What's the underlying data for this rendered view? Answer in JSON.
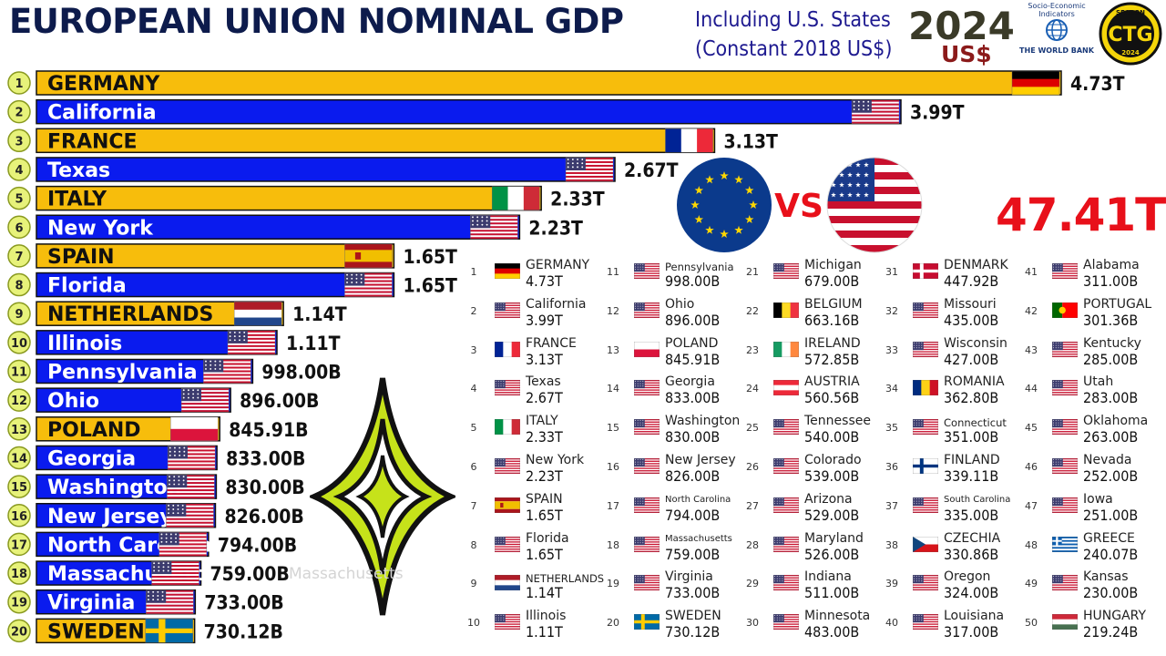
{
  "header": {
    "title": "EUROPEAN UNION NOMINAL GDP",
    "subtitle_line1": "Including U.S. States",
    "subtitle_line2": "(Constant 2018 US$)",
    "year": "2024",
    "currency": "US$"
  },
  "logos": {
    "worldbank_line1": "Socio-Economic",
    "worldbank_line2": "Indicators",
    "worldbank_name": "THE WORLD BANK",
    "ctg_season": "SEASON",
    "ctg_letters": "CTG",
    "ctg_year": "2024"
  },
  "vs_text": "VS",
  "total": "47.41T",
  "faded_label": "Massachusetts",
  "colors": {
    "eu": "#f7bd0c",
    "us": "#0a1bee",
    "bar_outline": "#111111",
    "rank_circle": "#e7f27a",
    "total": "#e8101a"
  },
  "chart_data": {
    "type": "bar",
    "orientation": "horizontal",
    "units": "US$ (constant 2018)",
    "categories": [
      "GERMANY",
      "California",
      "FRANCE",
      "Texas",
      "ITALY",
      "New York",
      "SPAIN",
      "Florida",
      "NETHERLANDS",
      "Illinois",
      "Pennsylvania",
      "Ohio",
      "POLAND",
      "Georgia",
      "Washington",
      "New Jersey",
      "North Carolina",
      "Massachusetts",
      "Virginia",
      "SWEDEN"
    ],
    "values": [
      4730,
      3990,
      3130,
      2670,
      2330,
      2230,
      1650,
      1650,
      1140,
      1110,
      998.0,
      896.0,
      845.91,
      833.0,
      830.0,
      826.0,
      794.0,
      759.0,
      733.0,
      730.12
    ],
    "value_unit": "billions",
    "value_labels": [
      "4.73T",
      "3.99T",
      "3.13T",
      "2.67T",
      "2.33T",
      "2.23T",
      "1.65T",
      "1.65T",
      "1.14T",
      "1.11T",
      "998.00B",
      "896.00B",
      "845.91B",
      "833.00B",
      "830.00B",
      "826.00B",
      "794.00B",
      "759.00B",
      "733.00B",
      "730.12B"
    ],
    "groups": [
      "eu",
      "us",
      "eu",
      "us",
      "eu",
      "us",
      "eu",
      "us",
      "eu",
      "us",
      "us",
      "us",
      "eu",
      "us",
      "us",
      "us",
      "us",
      "us",
      "us",
      "eu"
    ],
    "flags": [
      "germany",
      "usa",
      "france",
      "usa",
      "italy",
      "usa",
      "spain",
      "usa",
      "netherlands",
      "usa",
      "usa",
      "usa",
      "poland",
      "usa",
      "usa",
      "usa",
      "usa",
      "usa",
      "usa",
      "sweden"
    ],
    "ranks": [
      "1",
      "2",
      "3",
      "4",
      "5",
      "6",
      "7",
      "8",
      "9",
      "10",
      "11",
      "12",
      "13",
      "14",
      "15",
      "16",
      "17",
      "18",
      "19",
      "20"
    ],
    "xlim": [
      0,
      4730
    ],
    "grid": false,
    "legend": "none"
  },
  "ranking_table": [
    {
      "rank": "1",
      "name": "GERMANY",
      "value": "4.73T",
      "flag": "germany"
    },
    {
      "rank": "2",
      "name": "California",
      "value": "3.99T",
      "flag": "usa"
    },
    {
      "rank": "3",
      "name": "FRANCE",
      "value": "3.13T",
      "flag": "france"
    },
    {
      "rank": "4",
      "name": "Texas",
      "value": "2.67T",
      "flag": "usa"
    },
    {
      "rank": "5",
      "name": "ITALY",
      "value": "2.33T",
      "flag": "italy"
    },
    {
      "rank": "6",
      "name": "New York",
      "value": "2.23T",
      "flag": "usa"
    },
    {
      "rank": "7",
      "name": "SPAIN",
      "value": "1.65T",
      "flag": "spain"
    },
    {
      "rank": "8",
      "name": "Florida",
      "value": "1.65T",
      "flag": "usa"
    },
    {
      "rank": "9",
      "name": "NETHERLANDS",
      "value": "1.14T",
      "flag": "netherlands"
    },
    {
      "rank": "10",
      "name": "Illinois",
      "value": "1.11T",
      "flag": "usa"
    },
    {
      "rank": "11",
      "name": "Pennsylvania",
      "value": "998.00B",
      "flag": "usa"
    },
    {
      "rank": "12",
      "name": "Ohio",
      "value": "896.00B",
      "flag": "usa"
    },
    {
      "rank": "13",
      "name": "POLAND",
      "value": "845.91B",
      "flag": "poland"
    },
    {
      "rank": "14",
      "name": "Georgia",
      "value": "833.00B",
      "flag": "usa"
    },
    {
      "rank": "15",
      "name": "Washington",
      "value": "830.00B",
      "flag": "usa"
    },
    {
      "rank": "16",
      "name": "New Jersey",
      "value": "826.00B",
      "flag": "usa"
    },
    {
      "rank": "17",
      "name": "North Carolina",
      "value": "794.00B",
      "flag": "usa"
    },
    {
      "rank": "18",
      "name": "Massachusetts",
      "value": "759.00B",
      "flag": "usa"
    },
    {
      "rank": "19",
      "name": "Virginia",
      "value": "733.00B",
      "flag": "usa"
    },
    {
      "rank": "20",
      "name": "SWEDEN",
      "value": "730.12B",
      "flag": "sweden"
    },
    {
      "rank": "21",
      "name": "Michigan",
      "value": "679.00B",
      "flag": "usa"
    },
    {
      "rank": "22",
      "name": "BELGIUM",
      "value": "663.16B",
      "flag": "belgium"
    },
    {
      "rank": "23",
      "name": "IRELAND",
      "value": "572.85B",
      "flag": "ireland"
    },
    {
      "rank": "24",
      "name": "AUSTRIA",
      "value": "560.56B",
      "flag": "austria"
    },
    {
      "rank": "25",
      "name": "Tennessee",
      "value": "540.00B",
      "flag": "usa"
    },
    {
      "rank": "26",
      "name": "Colorado",
      "value": "539.00B",
      "flag": "usa"
    },
    {
      "rank": "27",
      "name": "Arizona",
      "value": "529.00B",
      "flag": "usa"
    },
    {
      "rank": "28",
      "name": "Maryland",
      "value": "526.00B",
      "flag": "usa"
    },
    {
      "rank": "29",
      "name": "Indiana",
      "value": "511.00B",
      "flag": "usa"
    },
    {
      "rank": "30",
      "name": "Minnesota",
      "value": "483.00B",
      "flag": "usa"
    },
    {
      "rank": "31",
      "name": "DENMARK",
      "value": "447.92B",
      "flag": "denmark"
    },
    {
      "rank": "32",
      "name": "Missouri",
      "value": "435.00B",
      "flag": "usa"
    },
    {
      "rank": "33",
      "name": "Wisconsin",
      "value": "427.00B",
      "flag": "usa"
    },
    {
      "rank": "34",
      "name": "ROMANIA",
      "value": "362.80B",
      "flag": "romania"
    },
    {
      "rank": "35",
      "name": "Connecticut",
      "value": "351.00B",
      "flag": "usa"
    },
    {
      "rank": "36",
      "name": "FINLAND",
      "value": "339.11B",
      "flag": "finland"
    },
    {
      "rank": "37",
      "name": "South Carolina",
      "value": "335.00B",
      "flag": "usa"
    },
    {
      "rank": "38",
      "name": "CZECHIA",
      "value": "330.86B",
      "flag": "czechia"
    },
    {
      "rank": "39",
      "name": "Oregon",
      "value": "324.00B",
      "flag": "usa"
    },
    {
      "rank": "40",
      "name": "Louisiana",
      "value": "317.00B",
      "flag": "usa"
    },
    {
      "rank": "41",
      "name": "Alabama",
      "value": "311.00B",
      "flag": "usa"
    },
    {
      "rank": "42",
      "name": "PORTUGAL",
      "value": "301.36B",
      "flag": "portugal"
    },
    {
      "rank": "43",
      "name": "Kentucky",
      "value": "285.00B",
      "flag": "usa"
    },
    {
      "rank": "44",
      "name": "Utah",
      "value": "283.00B",
      "flag": "usa"
    },
    {
      "rank": "45",
      "name": "Oklahoma",
      "value": "263.00B",
      "flag": "usa"
    },
    {
      "rank": "46",
      "name": "Nevada",
      "value": "252.00B",
      "flag": "usa"
    },
    {
      "rank": "47",
      "name": "Iowa",
      "value": "251.00B",
      "flag": "usa"
    },
    {
      "rank": "48",
      "name": "GREECE",
      "value": "240.07B",
      "flag": "greece"
    },
    {
      "rank": "49",
      "name": "Kansas",
      "value": "230.00B",
      "flag": "usa"
    },
    {
      "rank": "50",
      "name": "HUNGARY",
      "value": "219.24B",
      "flag": "hungary"
    }
  ]
}
